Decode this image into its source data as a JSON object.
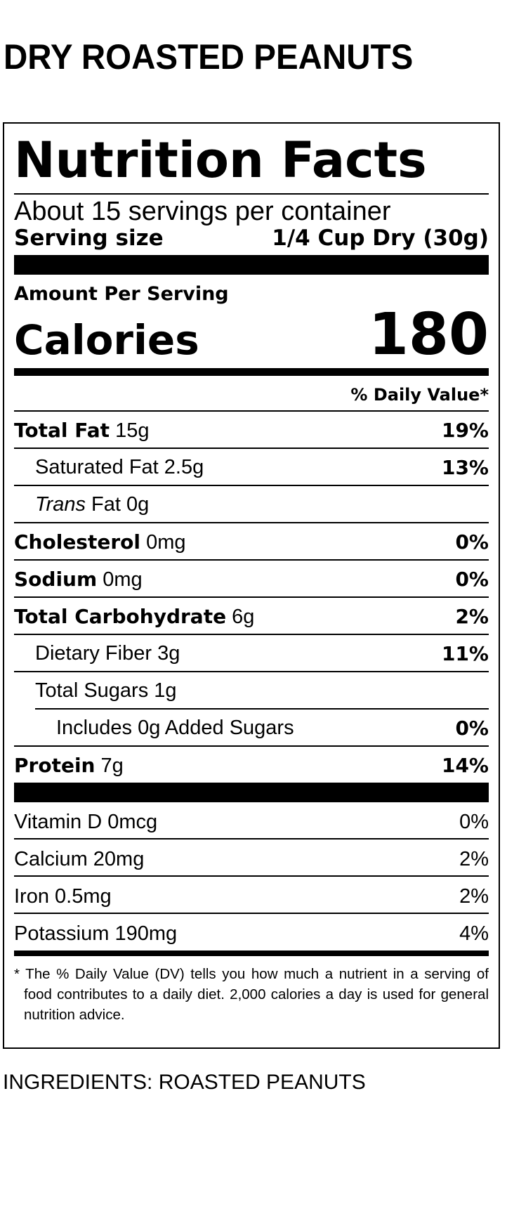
{
  "product_title": "DRY ROASTED PEANUTS",
  "label": {
    "heading": "Nutrition Facts",
    "servings_per_container": "About 15 servings per container",
    "serving_size_label": "Serving size",
    "serving_size_value": "1/4 Cup Dry (30g)",
    "amount_per_serving": "Amount Per Serving",
    "calories_label": "Calories",
    "calories_value": "180",
    "daily_value_header": "% Daily Value*",
    "nutrients": [
      {
        "name": "Total Fat",
        "amount": "15g",
        "dv": "19%"
      },
      {
        "name": "Saturated Fat",
        "amount": "2.5g",
        "dv": "13%"
      },
      {
        "name": "Trans",
        "name_suffix": "Fat",
        "amount": "0g",
        "dv": ""
      },
      {
        "name": "Cholesterol",
        "amount": "0mg",
        "dv": "0%"
      },
      {
        "name": "Sodium",
        "amount": "0mg",
        "dv": "0%"
      },
      {
        "name": "Total Carbohydrate",
        "amount": "6g",
        "dv": "2%"
      },
      {
        "name": "Dietary Fiber",
        "amount": "3g",
        "dv": "11%"
      },
      {
        "name": "Total Sugars",
        "amount": "1g",
        "dv": ""
      },
      {
        "name": "Includes 0g Added Sugars",
        "amount": "",
        "dv": "0%"
      },
      {
        "name": "Protein",
        "amount": "7g",
        "dv": "14%"
      }
    ],
    "vitamins": [
      {
        "label": "Vitamin D 0mcg",
        "dv": "0%"
      },
      {
        "label": "Calcium 20mg",
        "dv": "2%"
      },
      {
        "label": "Iron 0.5mg",
        "dv": "2%"
      },
      {
        "label": "Potassium 190mg",
        "dv": "4%"
      }
    ],
    "footnote": "* The % Daily Value (DV) tells you how much a nutrient in a serving of food contributes to a daily diet. 2,000 calories a day is used for general nutrition advice."
  },
  "ingredients": "INGREDIENTS: ROASTED PEANUTS"
}
